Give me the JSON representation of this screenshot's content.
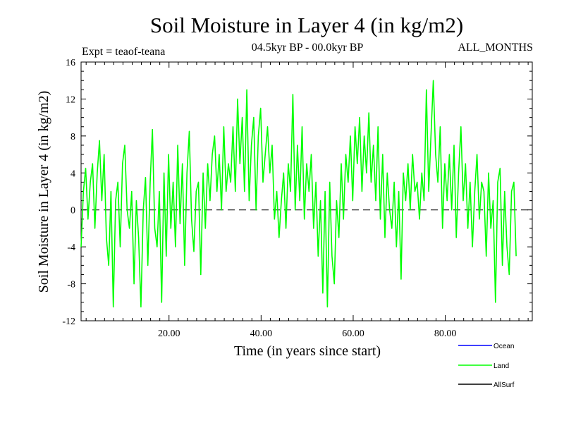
{
  "title": "Soil Moisture in Layer 4 (in kg/m2)",
  "expt_label": "Expt = teaof-teana",
  "period_label": "04.5kyr BP - 00.0kyr BP",
  "months_label": "ALL_MONTHS",
  "colors": {
    "ocean": "#0000ff",
    "land": "#00ff00",
    "allsurf": "#000000",
    "zero_line": "#000000",
    "axes": "#000000"
  },
  "chart_data": {
    "type": "line",
    "title": "Soil Moisture in Layer 4 (in kg/m2)",
    "xlabel": "Time (in years since start)",
    "ylabel": "Soil Moisture in Layer 4 (in kg/m2)",
    "xlim": [
      0.9,
      98.9
    ],
    "ylim": [
      -12,
      16
    ],
    "x_ticks": [
      20,
      40,
      60,
      80
    ],
    "x_tick_labels": [
      "20.00",
      "40.00",
      "60.00",
      "80.00"
    ],
    "y_ticks": [
      -12,
      -8,
      -4,
      0,
      4,
      8,
      12,
      16
    ],
    "y_tick_labels": [
      "-12",
      "-8",
      "-4",
      "0",
      "4",
      "8",
      "12",
      "16"
    ],
    "legend": [
      {
        "name": "Ocean",
        "color": "#0000ff"
      },
      {
        "name": "Land",
        "color": "#00ff00"
      },
      {
        "name": "AllSurf",
        "color": "#000000"
      }
    ],
    "legend_position": "bottom-right",
    "reference_line": {
      "y": 0,
      "style": "dashed"
    },
    "series": [
      {
        "name": "Land",
        "color": "#00ff00",
        "x_start": 0.9,
        "x_step": 0.5,
        "values": [
          -4.0,
          2.0,
          4.5,
          -1.0,
          3.0,
          5.0,
          -2.0,
          4.0,
          7.5,
          1.0,
          6.0,
          -3.0,
          -6.0,
          2.0,
          -10.5,
          1.0,
          3.0,
          -4.0,
          5.0,
          7.0,
          0.0,
          -2.0,
          2.0,
          -8.0,
          1.0,
          -3.0,
          -10.5,
          0.0,
          3.5,
          -6.0,
          3.0,
          8.7,
          -2.0,
          -4.0,
          2.0,
          -10.0,
          4.0,
          -5.0,
          6.0,
          -2.0,
          3.0,
          -4.0,
          7.0,
          -1.5,
          5.0,
          -6.0,
          4.0,
          8.5,
          -1.0,
          -4.5,
          2.0,
          3.0,
          -7.0,
          4.0,
          -2.0,
          5.0,
          1.0,
          6.0,
          8.0,
          2.0,
          6.0,
          0.0,
          9.0,
          2.0,
          5.0,
          3.0,
          9.0,
          2.0,
          12.0,
          5.0,
          10.0,
          2.0,
          13.0,
          1.0,
          7.0,
          10.0,
          0.0,
          8.0,
          11.0,
          3.0,
          6.0,
          9.0,
          4.0,
          7.0,
          -1.0,
          2.0,
          -3.0,
          1.0,
          4.0,
          -2.0,
          5.0,
          2.0,
          12.5,
          0.0,
          7.0,
          1.0,
          9.0,
          -1.0,
          5.0,
          2.0,
          6.0,
          -2.0,
          3.0,
          -5.0,
          1.0,
          -9.0,
          2.0,
          -10.5,
          3.0,
          -5.0,
          -8.0,
          1.0,
          -3.0,
          5.0,
          -1.0,
          6.0,
          3.0,
          8.0,
          1.0,
          9.0,
          5.0,
          10.0,
          2.0,
          8.0,
          4.0,
          10.5,
          3.0,
          7.0,
          1.0,
          9.0,
          -1.0,
          6.0,
          -3.0,
          4.0,
          0.0,
          -2.0,
          3.0,
          -4.0,
          2.0,
          -7.5,
          4.0,
          1.0,
          5.0,
          0.0,
          6.0,
          2.0,
          3.0,
          -1.0,
          4.0,
          1.0,
          13.0,
          2.0,
          8.0,
          14.0,
          6.0,
          3.0,
          9.0,
          -2.0,
          5.0,
          1.0,
          6.0,
          0.0,
          7.0,
          -3.0,
          4.0,
          9.0,
          1.0,
          5.0,
          -2.0,
          3.0,
          -4.0,
          2.0,
          6.0,
          -1.0,
          3.0,
          2.0,
          -5.0,
          4.0,
          -2.0,
          1.0,
          -10.0,
          3.0,
          4.5,
          -6.0,
          2.0,
          -4.0,
          -7.0,
          2.0,
          3.0,
          -5.0
        ]
      }
    ]
  }
}
